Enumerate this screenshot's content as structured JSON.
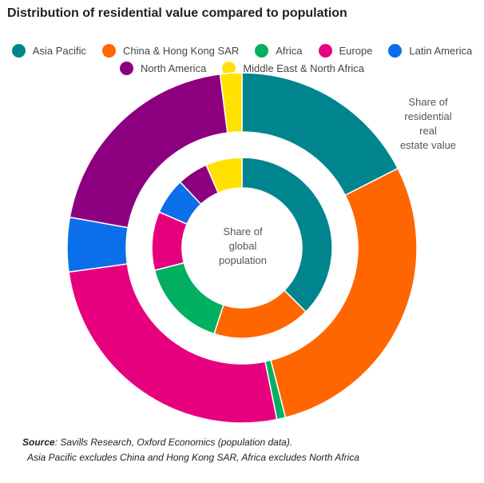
{
  "title": "Distribution of residential value compared to population",
  "legend": [
    {
      "label": "Asia Pacific",
      "color": "#00858F"
    },
    {
      "label": "China & Hong Kong SAR",
      "color": "#FF6600"
    },
    {
      "label": "Africa",
      "color": "#00B060"
    },
    {
      "label": "Europe",
      "color": "#E6007E"
    },
    {
      "label": "Latin America",
      "color": "#0A6FE8"
    },
    {
      "label": "North America",
      "color": "#8C0080"
    },
    {
      "label": "Middle East & North Africa",
      "color": "#FFE200"
    }
  ],
  "annotations": {
    "outer": "Share of\nresidential\nreal\nestate value",
    "inner": "Share of\nglobal\npopulation"
  },
  "footer": {
    "source_label": "Source",
    "source_text": ": Savills Research, Oxford Economics (population data).",
    "note": "Asia Pacific excludes China and Hong Kong SAR,  Africa excludes North Africa"
  },
  "chart_data": {
    "type": "donut",
    "start": "12 o'clock",
    "direction": "clockwise",
    "unit": "%",
    "categories": [
      "Asia Pacific",
      "China & Hong Kong SAR",
      "Africa",
      "Europe",
      "Latin America",
      "North America",
      "Middle East & North Africa"
    ],
    "series": [
      {
        "name": "Share of residential real estate value",
        "ring": "outer",
        "values": [
          17.5,
          28.5,
          0.8,
          26.0,
          5.0,
          20.2,
          2.0
        ]
      },
      {
        "name": "Share of global population",
        "ring": "inner",
        "values": [
          37.5,
          17.5,
          16.0,
          10.5,
          6.5,
          5.5,
          6.5
        ]
      }
    ]
  }
}
